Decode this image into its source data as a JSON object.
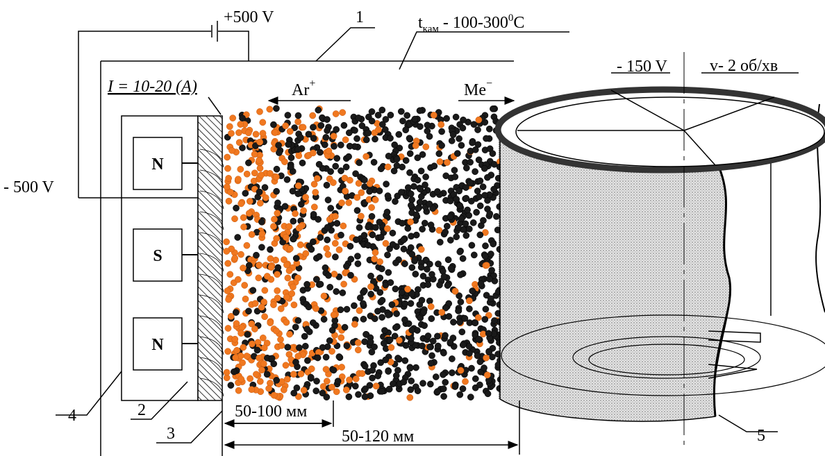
{
  "labels": {
    "anode_voltage": "+500 V",
    "cathode_voltage": "- 500 V",
    "substrate_voltage": "- 150 V",
    "rotation": "v- 2 об/хв",
    "current": "I = 10-20 (A)"
  },
  "chamber_temperature": {
    "symbol": "t",
    "subscript": "кам",
    "range": "- 100-300",
    "superscript": "0",
    "unit": "C"
  },
  "ions": {
    "ar": {
      "symbol": "Ar",
      "charge": "+"
    },
    "me": {
      "symbol": "Me",
      "charge": "−"
    }
  },
  "magnets": [
    "N",
    "S",
    "N"
  ],
  "callouts": [
    "1",
    "2",
    "3",
    "4",
    "5"
  ],
  "dimensions": [
    "50-100 мм",
    "50-120 мм"
  ]
}
